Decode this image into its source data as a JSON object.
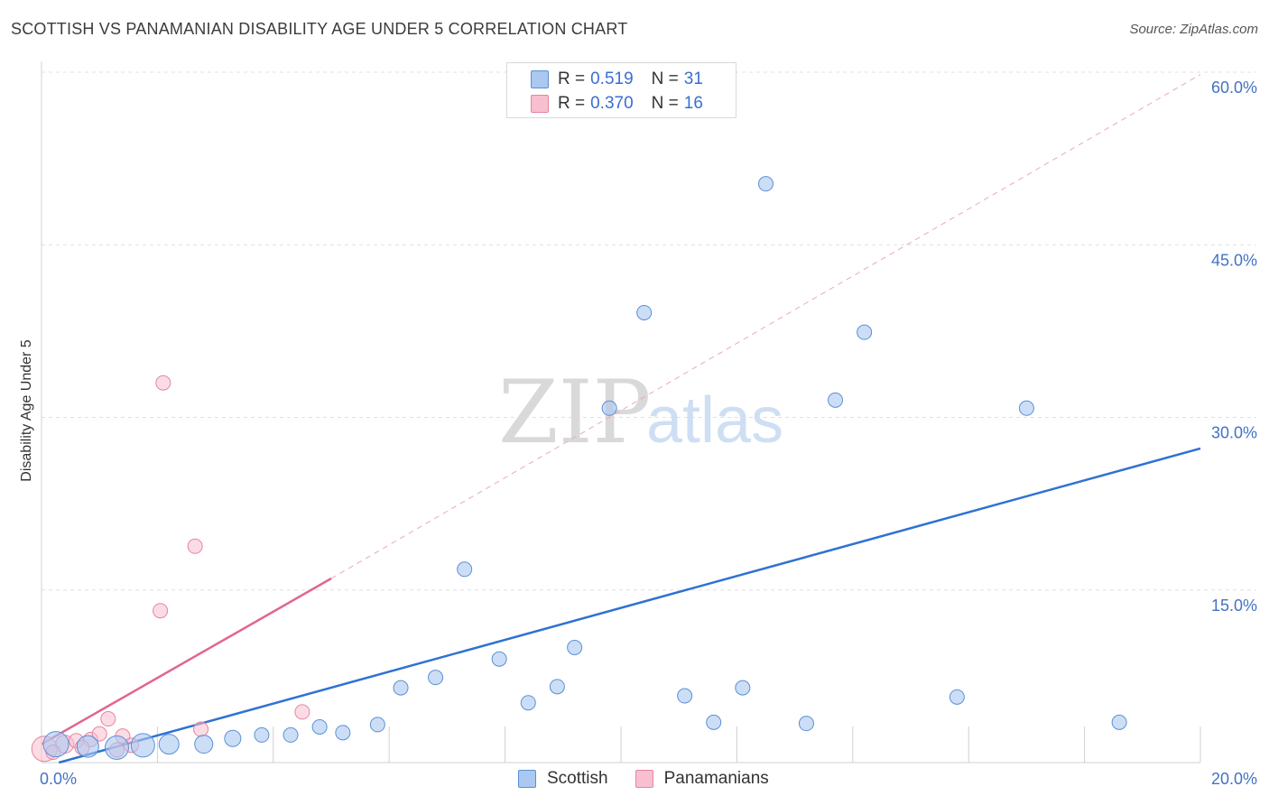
{
  "title": "SCOTTISH VS PANAMANIAN DISABILITY AGE UNDER 5 CORRELATION CHART",
  "source": "Source: ZipAtlas.com",
  "watermark": {
    "zip": "ZIP",
    "atlas": "atlas"
  },
  "colors": {
    "scottish_fill": "#aac8f0",
    "scottish_stroke": "#5b8fd8",
    "scottish_line": "#2e72d2",
    "panamanian_fill": "#f8bfd0",
    "panamanian_stroke": "#e7849f",
    "panamanian_line": "#e0668f",
    "tick": "#4472c4",
    "grid": "#e0e0e0"
  },
  "legend": {
    "rows": [
      {
        "r_label": "R =",
        "r_value": "0.519",
        "n_label": "N =",
        "n_value": "31",
        "series": "Scottish"
      },
      {
        "r_label": "R =",
        "r_value": "0.370",
        "n_label": "N =",
        "n_value": "16",
        "series": "Panamanians"
      }
    ]
  },
  "bottom_legend": {
    "scottish": "Scottish",
    "panamanian": "Panamanians"
  },
  "chart_data": {
    "type": "scatter",
    "title": "SCOTTISH VS PANAMANIAN DISABILITY AGE UNDER 5 CORRELATION CHART",
    "xlabel": "",
    "ylabel": "Disability Age Under 5",
    "xlim": [
      0,
      20
    ],
    "ylim": [
      0,
      60
    ],
    "x_tick_labels": [
      {
        "value": 0,
        "label": "0.0%"
      },
      {
        "value": 20,
        "label": "20.0%"
      }
    ],
    "y_tick_labels": [
      {
        "value": 15,
        "label": "15.0%"
      },
      {
        "value": 30,
        "label": "30.0%"
      },
      {
        "value": 45,
        "label": "45.0%"
      },
      {
        "value": 60,
        "label": "60.0%"
      }
    ],
    "series": [
      {
        "name": "Scottish",
        "points": [
          {
            "x": 0.25,
            "y": 1.6,
            "size": 14
          },
          {
            "x": 0.8,
            "y": 1.4,
            "size": 12
          },
          {
            "x": 1.3,
            "y": 1.3,
            "size": 13
          },
          {
            "x": 1.75,
            "y": 1.5,
            "size": 13
          },
          {
            "x": 2.2,
            "y": 1.6,
            "size": 11
          },
          {
            "x": 2.8,
            "y": 1.6,
            "size": 10
          },
          {
            "x": 3.3,
            "y": 2.1,
            "size": 9
          },
          {
            "x": 3.8,
            "y": 2.4,
            "size": 8
          },
          {
            "x": 4.3,
            "y": 2.4,
            "size": 8
          },
          {
            "x": 4.8,
            "y": 3.1,
            "size": 8
          },
          {
            "x": 5.2,
            "y": 2.6,
            "size": 8
          },
          {
            "x": 5.8,
            "y": 3.3,
            "size": 8
          },
          {
            "x": 6.2,
            "y": 6.5,
            "size": 8
          },
          {
            "x": 6.8,
            "y": 7.4,
            "size": 8
          },
          {
            "x": 7.3,
            "y": 16.8,
            "size": 8
          },
          {
            "x": 7.9,
            "y": 9.0,
            "size": 8
          },
          {
            "x": 8.4,
            "y": 5.2,
            "size": 8
          },
          {
            "x": 8.9,
            "y": 6.6,
            "size": 8
          },
          {
            "x": 9.2,
            "y": 10.0,
            "size": 8
          },
          {
            "x": 9.8,
            "y": 30.8,
            "size": 8
          },
          {
            "x": 10.4,
            "y": 39.1,
            "size": 8
          },
          {
            "x": 11.1,
            "y": 5.8,
            "size": 8
          },
          {
            "x": 11.6,
            "y": 3.5,
            "size": 8
          },
          {
            "x": 12.1,
            "y": 6.5,
            "size": 8
          },
          {
            "x": 12.5,
            "y": 50.3,
            "size": 8
          },
          {
            "x": 13.2,
            "y": 3.4,
            "size": 8
          },
          {
            "x": 13.7,
            "y": 31.5,
            "size": 8
          },
          {
            "x": 14.2,
            "y": 37.4,
            "size": 8
          },
          {
            "x": 15.8,
            "y": 5.7,
            "size": 8
          },
          {
            "x": 17.0,
            "y": 30.8,
            "size": 8
          },
          {
            "x": 18.6,
            "y": 3.5,
            "size": 8
          }
        ],
        "trend": {
          "x0": 0.3,
          "y0": 0.0,
          "x1": 20.0,
          "y1": 27.3
        }
      },
      {
        "name": "Panamanians",
        "points": [
          {
            "x": 0.05,
            "y": 1.2,
            "size": 14
          },
          {
            "x": 0.4,
            "y": 1.6,
            "size": 10
          },
          {
            "x": 0.6,
            "y": 1.9,
            "size": 8
          },
          {
            "x": 0.85,
            "y": 2.0,
            "size": 8
          },
          {
            "x": 1.0,
            "y": 2.5,
            "size": 8
          },
          {
            "x": 1.15,
            "y": 3.8,
            "size": 8
          },
          {
            "x": 1.4,
            "y": 2.3,
            "size": 8
          },
          {
            "x": 1.55,
            "y": 1.5,
            "size": 8
          },
          {
            "x": 2.05,
            "y": 13.2,
            "size": 8
          },
          {
            "x": 2.1,
            "y": 33.0,
            "size": 8
          },
          {
            "x": 2.65,
            "y": 18.8,
            "size": 8
          },
          {
            "x": 2.75,
            "y": 2.9,
            "size": 8
          },
          {
            "x": 4.5,
            "y": 4.4,
            "size": 8
          },
          {
            "x": 0.2,
            "y": 0.9,
            "size": 8
          },
          {
            "x": 1.3,
            "y": 1.1,
            "size": 8
          },
          {
            "x": 0.7,
            "y": 1.3,
            "size": 8
          }
        ],
        "trend": {
          "x0": 0.0,
          "y0": 1.6,
          "x1": 5.0,
          "y1": 16.0
        },
        "trend_extended": {
          "x0": 5.0,
          "y0": 16.0,
          "x1": 20.0,
          "y1": 59.8
        }
      }
    ]
  }
}
